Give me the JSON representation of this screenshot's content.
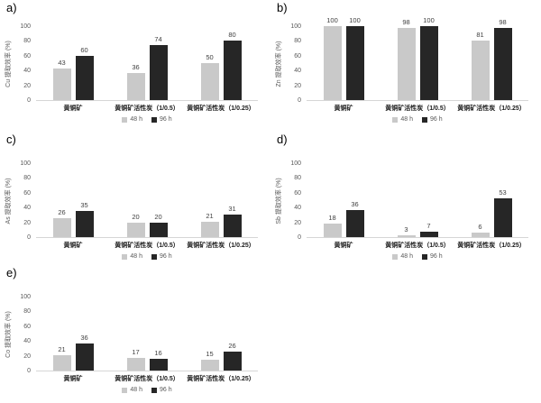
{
  "page": {
    "background": "#ffffff"
  },
  "legend": {
    "position": "bottom",
    "items": [
      {
        "label": "48 h",
        "color": "#c9c9c9"
      },
      {
        "label": "96 h",
        "color": "#262626"
      }
    ]
  },
  "chart_data": [
    {
      "panel": "a)",
      "type": "bar",
      "ylabel": "Cu 提取效率 (%)",
      "xlabel": "",
      "ylim": [
        0,
        100
      ],
      "yticks": [
        0,
        20,
        40,
        60,
        80,
        100
      ],
      "grid": false,
      "legend_position": "bottom",
      "categories": [
        "黄铜矿",
        "黄铜矿活性炭（1/0.5）",
        "黄铜矿活性炭（1/0.25）"
      ],
      "series": [
        {
          "name": "48 h",
          "color": "#c9c9c9",
          "values": [
            43,
            36,
            50
          ]
        },
        {
          "name": "96 h",
          "color": "#262626",
          "values": [
            60,
            74,
            80
          ]
        }
      ]
    },
    {
      "panel": "b)",
      "type": "bar",
      "ylabel": "Zn 提取效率 (%)",
      "xlabel": "",
      "ylim": [
        0,
        100
      ],
      "yticks": [
        0,
        20,
        40,
        60,
        80,
        100
      ],
      "grid": false,
      "legend_position": "bottom",
      "categories": [
        "黄铜矿",
        "黄铜矿活性炭（1/0.5）",
        "黄铜矿活性炭（1/0.25）"
      ],
      "series": [
        {
          "name": "48 h",
          "color": "#c9c9c9",
          "values": [
            100,
            98,
            81
          ]
        },
        {
          "name": "96 h",
          "color": "#262626",
          "values": [
            100,
            100,
            98
          ]
        }
      ]
    },
    {
      "panel": "c)",
      "type": "bar",
      "ylabel": "As 提取效率 (%)",
      "xlabel": "",
      "ylim": [
        0,
        100
      ],
      "yticks": [
        0,
        20,
        40,
        60,
        80,
        100
      ],
      "grid": false,
      "legend_position": "bottom",
      "categories": [
        "黄铜矿",
        "黄铜矿活性炭（1/0.5）",
        "黄铜矿活性炭（1/0.25）"
      ],
      "series": [
        {
          "name": "48 h",
          "color": "#c9c9c9",
          "values": [
            26,
            20,
            21
          ]
        },
        {
          "name": "96 h",
          "color": "#262626",
          "values": [
            35,
            20,
            31
          ]
        }
      ]
    },
    {
      "panel": "d)",
      "type": "bar",
      "ylabel": "Sb 提取效率 (%)",
      "xlabel": "",
      "ylim": [
        0,
        100
      ],
      "yticks": [
        0,
        20,
        40,
        60,
        80,
        100
      ],
      "grid": false,
      "legend_position": "bottom",
      "categories": [
        "黄铜矿",
        "黄铜矿活性炭（1/0.5）",
        "黄铜矿活性炭（1/0.25）"
      ],
      "series": [
        {
          "name": "48 h",
          "color": "#c9c9c9",
          "values": [
            18,
            3,
            6
          ]
        },
        {
          "name": "96 h",
          "color": "#262626",
          "values": [
            36,
            7,
            53
          ]
        }
      ]
    },
    {
      "panel": "e)",
      "type": "bar",
      "ylabel": "Co 提取效率 (%)",
      "xlabel": "",
      "ylim": [
        0,
        100
      ],
      "yticks": [
        0,
        20,
        40,
        60,
        80,
        100
      ],
      "grid": false,
      "legend_position": "bottom",
      "categories": [
        "黄铜矿",
        "黄铜矿活性炭（1/0.5）",
        "黄铜矿活性炭（1/0.25）"
      ],
      "series": [
        {
          "name": "48 h",
          "color": "#c9c9c9",
          "values": [
            21,
            17,
            15
          ]
        },
        {
          "name": "96 h",
          "color": "#262626",
          "values": [
            36,
            16,
            26
          ]
        }
      ]
    }
  ]
}
